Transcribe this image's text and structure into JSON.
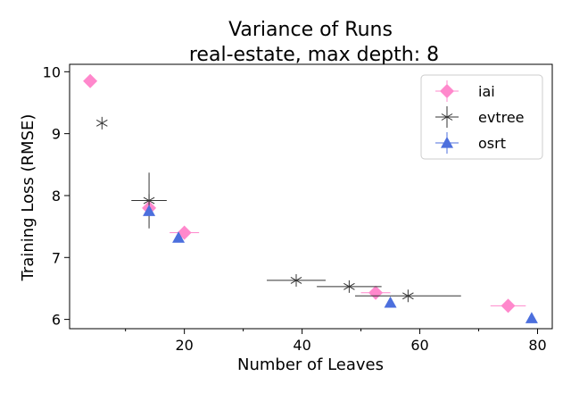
{
  "chart_data": {
    "type": "scatter",
    "title_lines": [
      "Variance of Runs",
      "real-estate, max depth: 8"
    ],
    "xlabel": "Number of Leaves",
    "ylabel": "Training Loss (RMSE)",
    "xlim": [
      0.5,
      82.5
    ],
    "ylim": [
      5.85,
      10.12
    ],
    "x_ticks": [
      20,
      40,
      60,
      80
    ],
    "x_tick_labels": [
      "20",
      "40",
      "60",
      "80"
    ],
    "x_minor_ticks": [
      10,
      30,
      50,
      70
    ],
    "y_ticks": [
      6,
      7,
      8,
      9,
      10
    ],
    "y_tick_labels": [
      "6",
      "7",
      "8",
      "9",
      "10"
    ],
    "grid": false,
    "legend_position": "top-right",
    "series": [
      {
        "name": "iai",
        "marker": "diamond",
        "color": "#ff88cc",
        "points": [
          {
            "x": 4,
            "y": 9.85,
            "xerr": 0,
            "yerr": 0
          },
          {
            "x": 14,
            "y": 7.8,
            "xerr": 0.5,
            "yerr": 0
          },
          {
            "x": 20,
            "y": 7.4,
            "xerr": 2.5,
            "yerr": 0
          },
          {
            "x": 52.5,
            "y": 6.43,
            "xerr": 2.5,
            "yerr": 0
          },
          {
            "x": 75,
            "y": 6.22,
            "xerr": 3,
            "yerr": 0
          }
        ]
      },
      {
        "name": "evtree",
        "marker": "star",
        "color": "#333333",
        "points": [
          {
            "x": 6,
            "y": 9.17,
            "xerr": 0,
            "yerr": 0
          },
          {
            "x": 14,
            "y": 7.92,
            "xerr": 3,
            "yerr": 0.45
          },
          {
            "x": 39,
            "y": 6.63,
            "xerr": 5,
            "yerr": 0
          },
          {
            "x": 48,
            "y": 6.53,
            "xerr": 5.5,
            "yerr": 0
          },
          {
            "x": 58,
            "y": 6.38,
            "xerr": 9,
            "yerr": 0
          }
        ]
      },
      {
        "name": "osrt",
        "marker": "triangle",
        "color": "#4c6fdd",
        "points": [
          {
            "x": 14,
            "y": 7.75,
            "xerr": 0,
            "yerr": 0
          },
          {
            "x": 19,
            "y": 7.32,
            "xerr": 0,
            "yerr": 0
          },
          {
            "x": 55,
            "y": 6.27,
            "xerr": 0,
            "yerr": 0
          },
          {
            "x": 79,
            "y": 6.02,
            "xerr": 0,
            "yerr": 0
          }
        ]
      }
    ]
  }
}
